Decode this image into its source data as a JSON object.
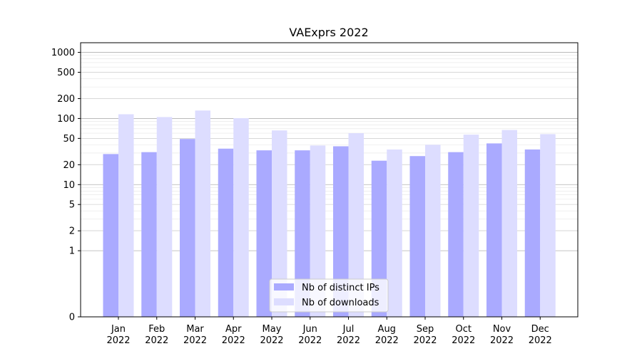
{
  "chart_data": {
    "type": "bar",
    "title": "VAExprs 2022",
    "xlabel": "",
    "ylabel": "",
    "yscale": "symlog",
    "ylim": [
      0,
      1400
    ],
    "yticks": [
      0,
      1,
      2,
      5,
      10,
      20,
      50,
      100,
      200,
      500,
      1000
    ],
    "ytick_labels": [
      "0",
      "1",
      "2",
      "5",
      "10",
      "20",
      "50",
      "100",
      "200",
      "500",
      "1000"
    ],
    "grid": true,
    "legend_position": "lower-center",
    "categories": [
      "Jan\n2022",
      "Feb\n2022",
      "Mar\n2022",
      "Apr\n2022",
      "May\n2022",
      "Jun\n2022",
      "Jul\n2022",
      "Aug\n2022",
      "Sep\n2022",
      "Oct\n2022",
      "Nov\n2022",
      "Dec\n2022"
    ],
    "series": [
      {
        "name": "Nb of distinct IPs",
        "color": "#aaaaff",
        "values": [
          29,
          31,
          49,
          35,
          33,
          33,
          38,
          23,
          27,
          31,
          42,
          34
        ]
      },
      {
        "name": "Nb of downloads",
        "color": "#ddddff",
        "values": [
          116,
          105,
          132,
          101,
          66,
          39,
          60,
          34,
          40,
          57,
          67,
          58
        ]
      }
    ]
  }
}
